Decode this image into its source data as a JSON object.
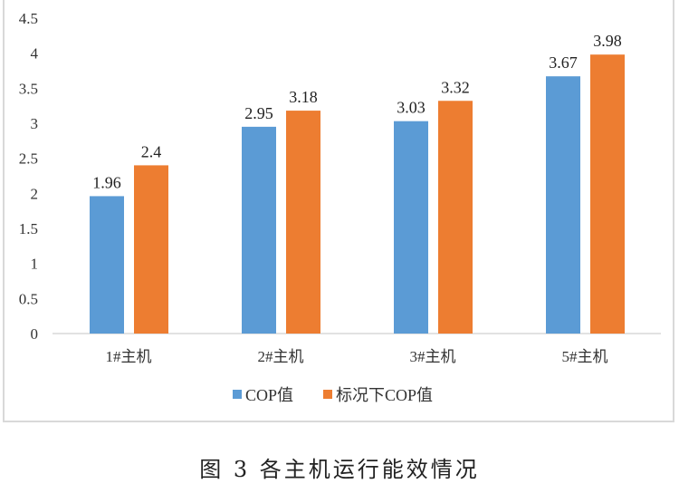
{
  "chart_data": {
    "type": "bar",
    "categories": [
      "1#主机",
      "2#主机",
      "3#主机",
      "5#主机"
    ],
    "series": [
      {
        "name": "COP值",
        "values": [
          1.96,
          2.95,
          3.03,
          3.67
        ],
        "color": "#5B9BD5"
      },
      {
        "name": "标况下COP值",
        "values": [
          2.4,
          3.18,
          3.32,
          3.98
        ],
        "color": "#ED7D31"
      }
    ],
    "data_labels": [
      [
        "1.96",
        "2.95",
        "3.03",
        "3.67"
      ],
      [
        "2.4",
        "3.18",
        "3.32",
        "3.98"
      ]
    ],
    "yticks": [
      "0",
      "0.5",
      "1",
      "1.5",
      "2",
      "2.5",
      "3",
      "3.5",
      "4",
      "4.5"
    ],
    "ylim": [
      0,
      4.5
    ],
    "grid": false,
    "legend": "bottom",
    "title": "",
    "xlabel": "",
    "ylabel": ""
  },
  "caption": "图 3 各主机运行能效情况"
}
